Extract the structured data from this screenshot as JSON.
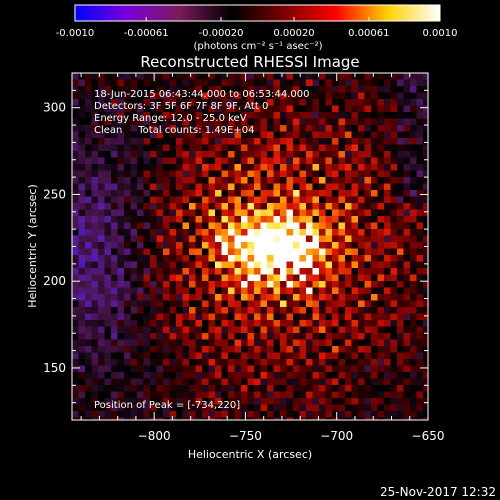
{
  "chart_data": {
    "type": "heatmap",
    "title": "Reconstructed RHESSI Image",
    "xlabel": "Heliocentric X (arcsec)",
    "ylabel": "Heliocentric Y (arcsec)",
    "xlim": [
      -845,
      -650
    ],
    "ylim": [
      120,
      320
    ],
    "xticks": [
      -800,
      -750,
      -700,
      -650
    ],
    "yticks": [
      150,
      200,
      250,
      300
    ],
    "colorbar": {
      "range": [
        -0.001,
        0.001
      ],
      "ticks": [
        -0.001,
        -0.00061,
        -0.0002,
        0.0002,
        0.00061,
        0.001
      ],
      "tick_labels": [
        "-0.0010",
        "-0.00061",
        "-0.00020",
        "0.00020",
        "0.00061",
        "0.0010"
      ],
      "unit_label": "(photons cm⁻² s⁻¹ asec⁻²)",
      "colors": [
        "#0000ff",
        "#7a00d8",
        "#7a1a5a",
        "#000000",
        "#7a0000",
        "#ff0000",
        "#ffd200",
        "#ffffff"
      ]
    },
    "annotations": [
      "18-Jun-2015 06:43:44.000 to 06:53:44.000",
      "Detectors: 3F 5F 6F 7F 8F 9F, Att 0",
      "Energy Range: 12.0 - 25.0 keV",
      "Clean     Total counts: 1.49E+04"
    ],
    "peak_label": "Position of Peak = [-734,220]",
    "peak": [
      -734,
      220
    ],
    "footer": "25-Nov-2017 12:32"
  }
}
